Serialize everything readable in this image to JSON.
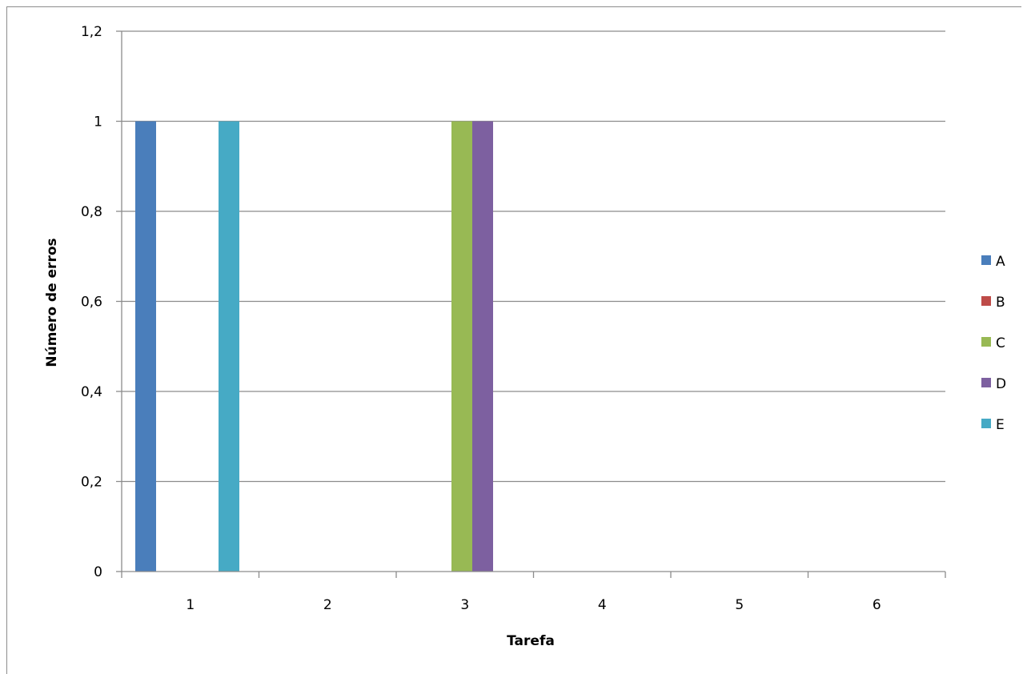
{
  "chart_data": {
    "type": "bar",
    "title": "",
    "xlabel": "Tarefa",
    "ylabel": "Número de erros",
    "categories": [
      "1",
      "2",
      "3",
      "4",
      "5",
      "6"
    ],
    "ylim": [
      0,
      1.2
    ],
    "yticks": [
      0,
      0.2,
      0.4,
      0.6,
      0.8,
      1,
      1.2
    ],
    "ytick_labels": [
      "0",
      "0,2",
      "0,4",
      "0,6",
      "0,8",
      "1",
      "1,2"
    ],
    "grid": "horizontal",
    "legend_position": "right",
    "series": [
      {
        "name": "A",
        "color": "#4a7ebb",
        "values": [
          1,
          0,
          0,
          0,
          0,
          0
        ]
      },
      {
        "name": "B",
        "color": "#be4b48",
        "values": [
          0,
          0,
          0,
          0,
          0,
          0
        ]
      },
      {
        "name": "C",
        "color": "#98b954",
        "values": [
          0,
          0,
          1,
          0,
          0,
          0
        ]
      },
      {
        "name": "D",
        "color": "#7d60a0",
        "values": [
          0,
          0,
          1,
          0,
          0,
          0
        ]
      },
      {
        "name": "E",
        "color": "#46aac5",
        "values": [
          1,
          0,
          0,
          0,
          0,
          0
        ]
      }
    ]
  }
}
